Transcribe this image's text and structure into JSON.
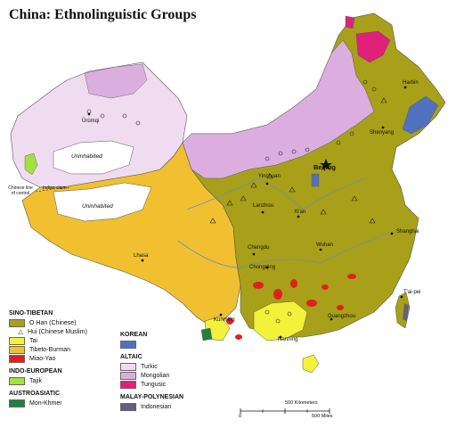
{
  "title": "China: Ethnolinguistic Groups",
  "colors": {
    "han": "#a8a018",
    "tai": "#f2f23a",
    "tibeto_burman": "#f0c030",
    "miao_yao": "#e02020",
    "tajik": "#a0e040",
    "mon_khmer": "#208040",
    "korean": "#5070c0",
    "turkic": "#f0dcf0",
    "mongolian": "#dcaee0",
    "tungusic": "#e0207a",
    "indonesian": "#606080"
  },
  "map_labels": {
    "uninhabited_1": "Uninhabited",
    "uninhabited_2": "Uninhabited",
    "chinese_line": "Chinese line\nof control",
    "indian_claim": "Indian claim",
    "urumqi": "Ürümqi",
    "harbin": "Harbin",
    "shenyang": "Shenyang",
    "beijing": "Beijing",
    "yinchuan": "Yinchuan",
    "lanzhou": "Lanzhou",
    "xian": "Xi'an",
    "shanghai": "Shanghai",
    "chengdu": "Chengdu",
    "wuhan": "Wuhan",
    "chongqing": "Chongqing",
    "lhasa": "Lhasa",
    "taipei": "T'ai-pei",
    "kunming": "Kunming",
    "guangzhou": "Guangzhou",
    "nanning": "Nanning"
  },
  "legend": {
    "sino_tibetan": {
      "title": "SINO-TIBETAN",
      "han": "O Han (Chinese)",
      "hui": "Hui (Chinese Muslim)",
      "hui_symbol": "△",
      "tai": "Tai",
      "tibeto_burman": "Tibeto-Burman",
      "miao_yao": "Miao-Yao"
    },
    "indo_european": {
      "title": "INDO-EUROPEAN",
      "tajik": "Tajik"
    },
    "austroasiatic": {
      "title": "AUSTROASIATIC",
      "mon_khmer": "Mon-Khmer"
    },
    "korean": {
      "title": "KOREAN"
    },
    "altaic": {
      "title": "ALTAIC",
      "turkic": "Turkic",
      "mongolian": "Mongolian",
      "tungusic": "Tungusic"
    },
    "malay_polynesian": {
      "title": "MALAY-POLYNESIAN",
      "indonesian": "Indonesian"
    }
  },
  "scale": {
    "km_value": "500",
    "km_label": "500 Kilometers",
    "miles_label": "500 Miles",
    "zero": "0"
  }
}
